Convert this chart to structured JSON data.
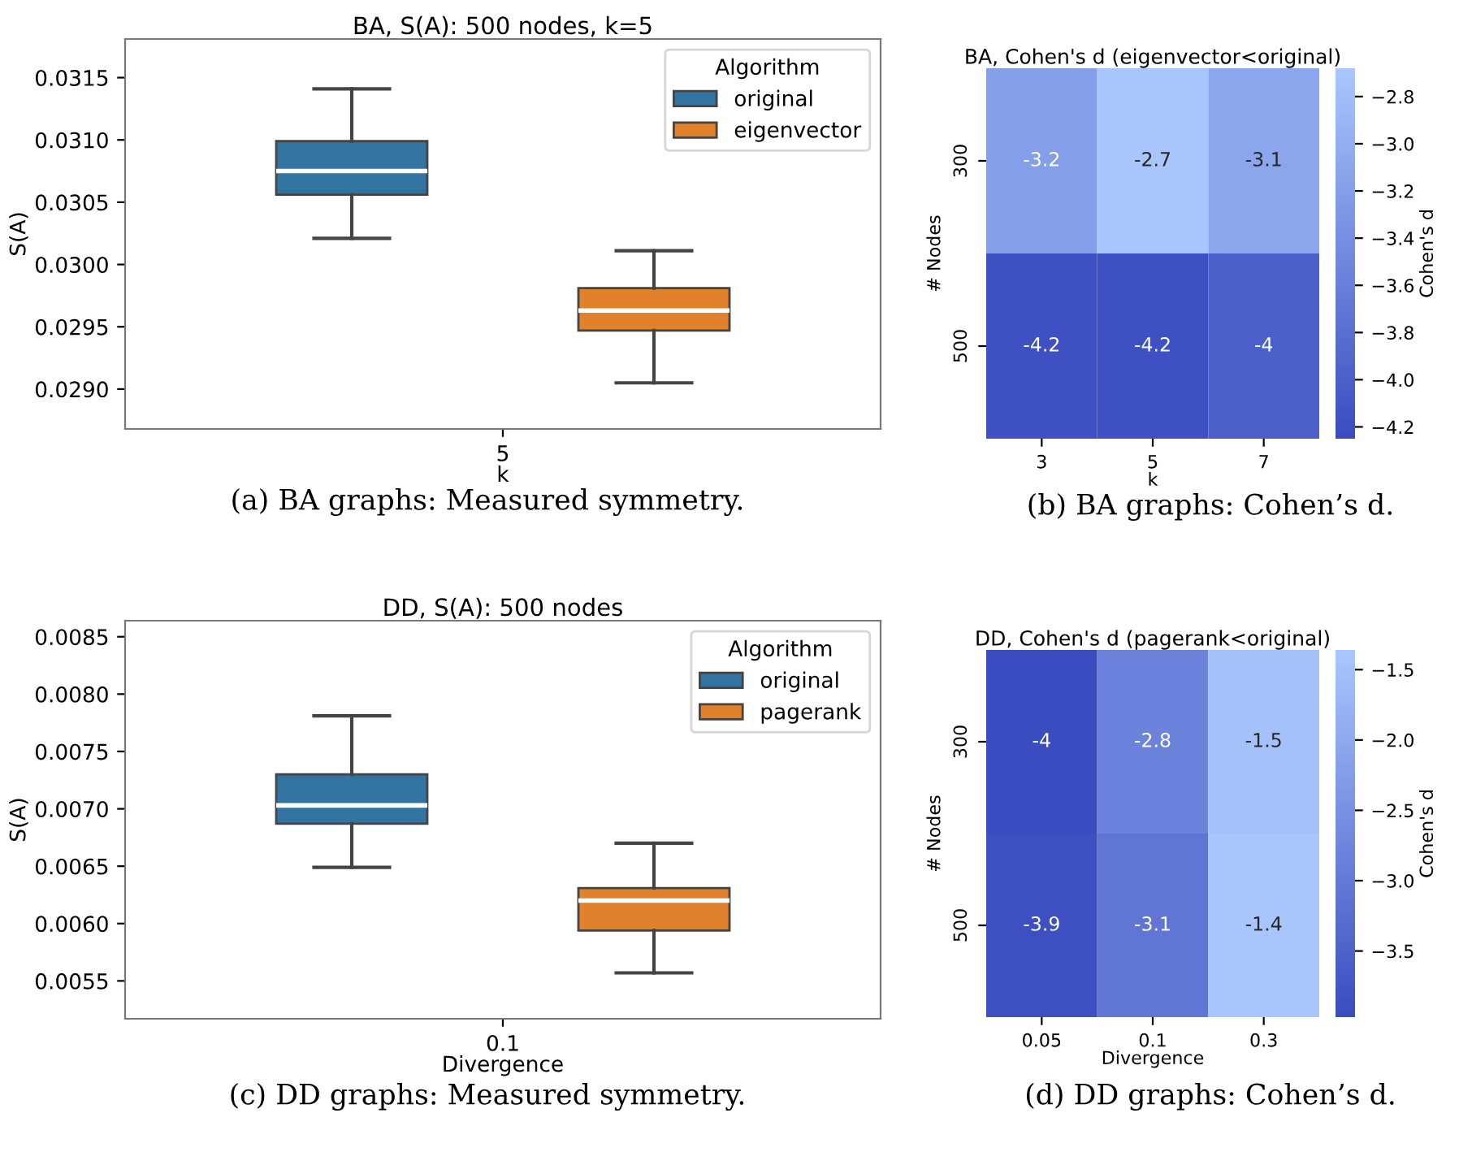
{
  "chart_data": [
    {
      "type": "box",
      "title": "BA, S(A): 500 nodes, k=5",
      "xlabel": "k",
      "ylabel": "S(A)",
      "legend_title": "Algorithm",
      "legend": "top right",
      "categories": [
        "5"
      ],
      "ylim": [
        0.02868,
        0.03181
      ],
      "yticks": [
        {
          "value": 0.029,
          "label": "0.0290"
        },
        {
          "value": 0.0295,
          "label": "0.0295"
        },
        {
          "value": 0.03,
          "label": "0.0300"
        },
        {
          "value": 0.0305,
          "label": "0.0305"
        },
        {
          "value": 0.031,
          "label": "0.0310"
        },
        {
          "value": 0.0315,
          "label": "0.0315"
        }
      ],
      "annotations": [
        "(a) BA graphs: Measured symmetry."
      ],
      "series": [
        {
          "name": "original",
          "color": "#3274a1",
          "boxes": [
            {
              "low": 0.03021,
              "q1": 0.03056,
              "median": 0.03075,
              "q3": 0.03099,
              "high": 0.03141
            }
          ]
        },
        {
          "name": "eigenvector",
          "color": "#e1812c",
          "boxes": [
            {
              "low": 0.02905,
              "q1": 0.02947,
              "median": 0.02963,
              "q3": 0.02981,
              "high": 0.03011
            }
          ]
        }
      ]
    },
    {
      "type": "heatmap",
      "title": "BA, Cohen's d (eigenvector<original)",
      "xlabel": "k",
      "ylabel": "# Nodes",
      "clabel": "Cohen's d",
      "categories": [
        "3",
        "5",
        "7"
      ],
      "y_categories": [
        "300",
        "500"
      ],
      "data_labels": true,
      "cells": [
        [
          -3.2,
          -2.7,
          -3.1
        ],
        [
          -4.2,
          -4.2,
          -4
        ]
      ],
      "clim": [
        -4.25,
        -2.68
      ],
      "cticks": [
        {
          "value": -4.2,
          "label": "−4.2"
        },
        {
          "value": -4.0,
          "label": "−4.0"
        },
        {
          "value": -3.8,
          "label": "−3.8"
        },
        {
          "value": -3.6,
          "label": "−3.6"
        },
        {
          "value": -3.4,
          "label": "−3.4"
        },
        {
          "value": -3.2,
          "label": "−3.2"
        },
        {
          "value": -3.0,
          "label": "−3.0"
        },
        {
          "value": -2.8,
          "label": "−2.8"
        }
      ],
      "annotations": [
        "(b) BA graphs: Cohen’s d."
      ]
    },
    {
      "type": "box",
      "title": "DD, S(A): 500 nodes",
      "xlabel": "Divergence",
      "ylabel": "S(A)",
      "legend_title": "Algorithm",
      "legend": "top right",
      "categories": [
        "0.1"
      ],
      "ylim": [
        0.00517,
        0.00864
      ],
      "yticks": [
        {
          "value": 0.0055,
          "label": "0.0055"
        },
        {
          "value": 0.006,
          "label": "0.0060"
        },
        {
          "value": 0.0065,
          "label": "0.0065"
        },
        {
          "value": 0.007,
          "label": "0.0070"
        },
        {
          "value": 0.0075,
          "label": "0.0075"
        },
        {
          "value": 0.008,
          "label": "0.0080"
        },
        {
          "value": 0.0085,
          "label": "0.0085"
        }
      ],
      "annotations": [
        "(c) DD graphs: Measured symmetry."
      ],
      "series": [
        {
          "name": "original",
          "color": "#3274a1",
          "boxes": [
            {
              "low": 0.00649,
              "q1": 0.00687,
              "median": 0.00703,
              "q3": 0.0073,
              "high": 0.00781
            }
          ]
        },
        {
          "name": "pagerank",
          "color": "#e1812c",
          "boxes": [
            {
              "low": 0.00557,
              "q1": 0.00594,
              "median": 0.0062,
              "q3": 0.00631,
              "high": 0.0067
            }
          ]
        }
      ]
    },
    {
      "type": "heatmap",
      "title": "DD, Cohen's d (pagerank<original)",
      "xlabel": "Divergence",
      "ylabel": "# Nodes",
      "clabel": "Cohen's d",
      "categories": [
        "0.05",
        "0.1",
        "0.3"
      ],
      "y_categories": [
        "300",
        "500"
      ],
      "data_labels": true,
      "cells": [
        [
          -4,
          -2.8,
          -1.5
        ],
        [
          -3.9,
          -3.1,
          -1.4
        ]
      ],
      "clim": [
        -3.97,
        -1.36
      ],
      "cticks": [
        {
          "value": -3.5,
          "label": "−3.5"
        },
        {
          "value": -3.0,
          "label": "−3.0"
        },
        {
          "value": -2.5,
          "label": "−2.5"
        },
        {
          "value": -2.0,
          "label": "−2.0"
        },
        {
          "value": -1.5,
          "label": "−1.5"
        }
      ],
      "annotations": [
        "(d) DD graphs: Cohen’s d."
      ]
    }
  ]
}
